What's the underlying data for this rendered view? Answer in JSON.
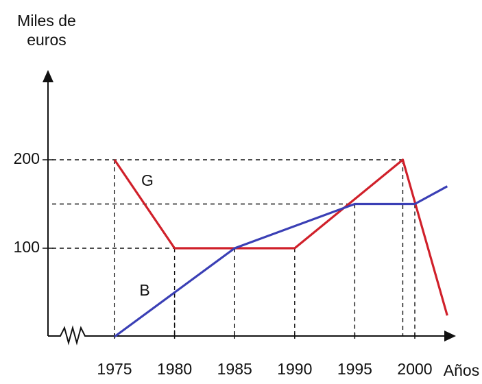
{
  "chart_data": {
    "type": "line",
    "ylabel": [
      "Miles de",
      "euros"
    ],
    "xlabel": "Años",
    "xlim": [
      1975,
      2000
    ],
    "xticks": [
      1975,
      1980,
      1985,
      1990,
      1995,
      2000
    ],
    "ylim": [
      0,
      200
    ],
    "yticks": [
      100,
      200
    ],
    "series": [
      {
        "name": "G",
        "color": "#d0202a",
        "x": [
          1975,
          1980,
          1985,
          1990,
          1999,
          2002.7
        ],
        "values": [
          200,
          100,
          100,
          100,
          200,
          24
        ]
      },
      {
        "name": "B",
        "color": "#3a3fb5",
        "x": [
          1975,
          1980,
          1985,
          1995,
          2000,
          2002.7
        ],
        "values": [
          0,
          50,
          100,
          150,
          150,
          170
        ]
      }
    ]
  }
}
